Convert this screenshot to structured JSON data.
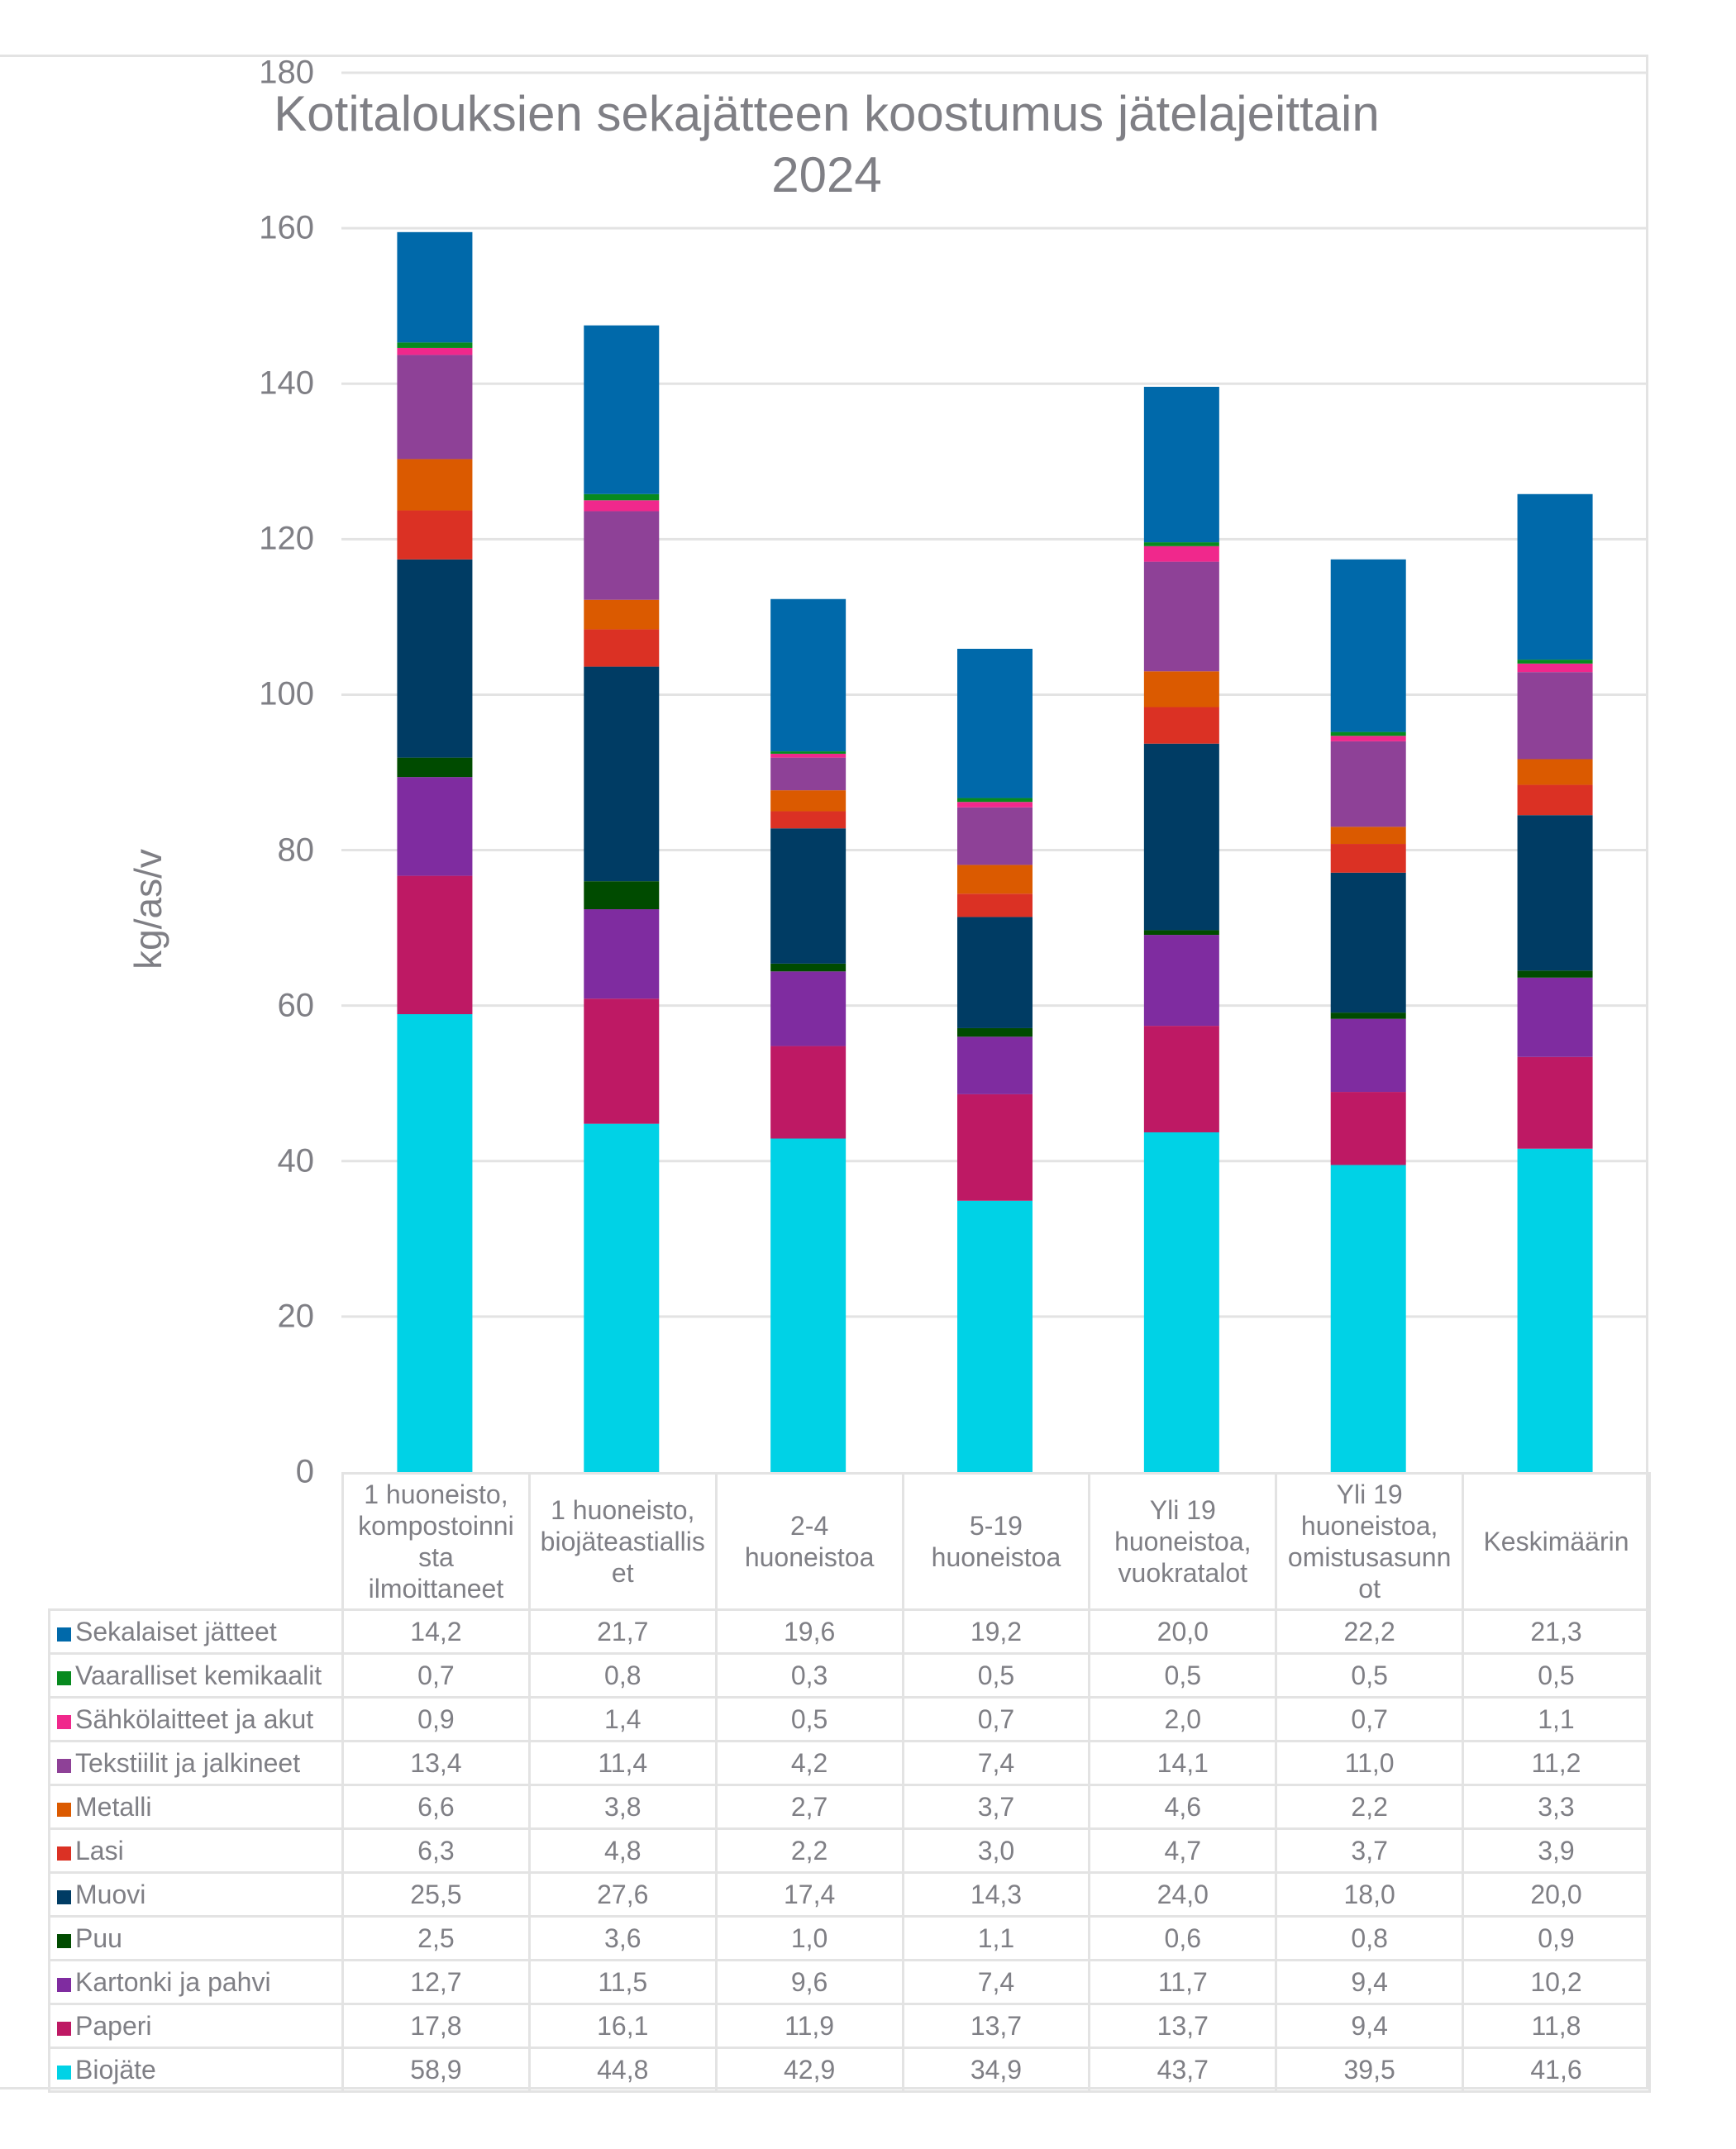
{
  "chart_data": {
    "type": "bar",
    "stacked": true,
    "title": "Kotitalouksien sekajätteen koostumus jätelajeittain 2024",
    "title_lines": [
      "Kotitalouksien sekajätteen koostumus jätelajeittain",
      "2024"
    ],
    "xlabel": "",
    "ylabel": "kg/as/v",
    "ylim": [
      0,
      180
    ],
    "yticks": [
      0,
      20,
      40,
      60,
      80,
      100,
      120,
      140,
      160,
      180
    ],
    "grid": true,
    "legend": "data-table-bottom",
    "categories": [
      "1 huoneisto, kompostoinnista ilmoittaneet",
      "1 huoneisto, biojäteastialliset",
      "2-4 huoneistoa",
      "5-19 huoneistoa",
      "Yli 19 huoneistoa, vuokratalot",
      "Yli 19 huoneistoa, omistusasunnot",
      "Keskimäärin"
    ],
    "category_lines": [
      [
        "1 huoneisto,",
        "kompostoinni",
        "sta",
        "ilmoittaneet"
      ],
      [
        "1 huoneisto,",
        "biojäteastiallis",
        "et"
      ],
      [
        "2-4",
        "huoneistoa"
      ],
      [
        "5-19",
        "huoneistoa"
      ],
      [
        "Yli 19",
        "huoneistoa,",
        "vuokratalot"
      ],
      [
        "Yli 19",
        "huoneistoa,",
        "omistusasunn",
        "ot"
      ],
      [
        "Keskimäärin"
      ]
    ],
    "series_stack_order": "bottom-to-top",
    "series": [
      {
        "name": "Biojäte",
        "color": "#00D2E6",
        "values": [
          58.9,
          44.8,
          42.9,
          34.9,
          43.7,
          39.5,
          41.6
        ],
        "labels": [
          "58,9",
          "44,8",
          "42,9",
          "34,9",
          "43,7",
          "39,5",
          "41,6"
        ]
      },
      {
        "name": "Paperi",
        "color": "#BE1964",
        "values": [
          17.8,
          16.1,
          11.9,
          13.7,
          13.7,
          9.4,
          11.8
        ],
        "labels": [
          "17,8",
          "16,1",
          "11,9",
          "13,7",
          "13,7",
          "9,4",
          "11,8"
        ]
      },
      {
        "name": "Kartonki ja pahvi",
        "color": "#7F2CA0",
        "values": [
          12.7,
          11.5,
          9.6,
          7.4,
          11.7,
          9.4,
          10.2
        ],
        "labels": [
          "12,7",
          "11,5",
          "9,6",
          "7,4",
          "11,7",
          "9,4",
          "10,2"
        ]
      },
      {
        "name": "Puu",
        "color": "#004B00",
        "values": [
          2.5,
          3.6,
          1.0,
          1.1,
          0.6,
          0.8,
          0.9
        ],
        "labels": [
          "2,5",
          "3,6",
          "1,0",
          "1,1",
          "0,6",
          "0,8",
          "0,9"
        ]
      },
      {
        "name": "Muovi",
        "color": "#003C64",
        "values": [
          25.5,
          27.6,
          17.4,
          14.3,
          24.0,
          18.0,
          20.0
        ],
        "labels": [
          "25,5",
          "27,6",
          "17,4",
          "14,3",
          "24,0",
          "18,0",
          "20,0"
        ]
      },
      {
        "name": "Lasi",
        "color": "#DB3124",
        "values": [
          6.3,
          4.8,
          2.2,
          3.0,
          4.7,
          3.7,
          3.9
        ],
        "labels": [
          "6,3",
          "4,8",
          "2,2",
          "3,0",
          "4,7",
          "3,7",
          "3,9"
        ]
      },
      {
        "name": "Metalli",
        "color": "#DB5A00",
        "values": [
          6.6,
          3.8,
          2.7,
          3.7,
          4.6,
          2.2,
          3.3
        ],
        "labels": [
          "6,6",
          "3,8",
          "2,7",
          "3,7",
          "4,6",
          "2,2",
          "3,3"
        ]
      },
      {
        "name": "Tekstiilit ja jalkineet",
        "color": "#8E4197",
        "values": [
          13.4,
          11.4,
          4.2,
          7.4,
          14.1,
          11.0,
          11.2
        ],
        "labels": [
          "13,4",
          "11,4",
          "4,2",
          "7,4",
          "14,1",
          "11,0",
          "11,2"
        ]
      },
      {
        "name": "Sähkölaitteet ja akut",
        "color": "#F0288C",
        "values": [
          0.9,
          1.4,
          0.5,
          0.7,
          2.0,
          0.7,
          1.1
        ],
        "labels": [
          "0,9",
          "1,4",
          "0,5",
          "0,7",
          "2,0",
          "0,7",
          "1,1"
        ]
      },
      {
        "name": "Vaaralliset kemikaalit",
        "color": "#078A1F",
        "values": [
          0.7,
          0.8,
          0.3,
          0.5,
          0.5,
          0.5,
          0.5
        ],
        "labels": [
          "0,7",
          "0,8",
          "0,3",
          "0,5",
          "0,5",
          "0,5",
          "0,5"
        ]
      },
      {
        "name": "Sekalaiset jätteet",
        "color": "#0069AA",
        "values": [
          14.2,
          21.7,
          19.6,
          19.2,
          20.0,
          22.2,
          21.3
        ],
        "labels": [
          "14,2",
          "21,7",
          "19,6",
          "19,2",
          "20,0",
          "22,2",
          "21,3"
        ]
      }
    ]
  }
}
